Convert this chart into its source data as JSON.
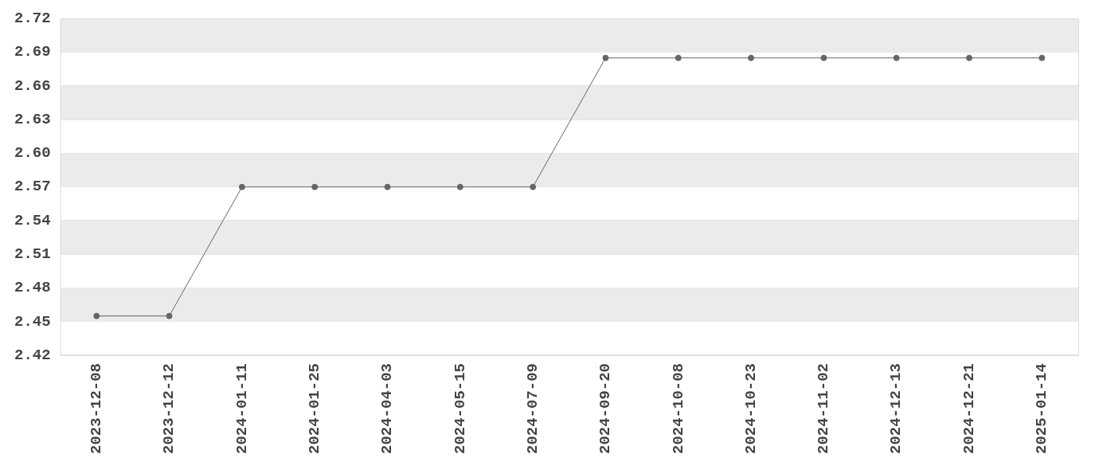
{
  "chart_data": {
    "type": "line",
    "categories": [
      "2023-12-08",
      "2023-12-12",
      "2024-01-11",
      "2024-01-25",
      "2024-04-03",
      "2024-05-15",
      "2024-07-09",
      "2024-09-20",
      "2024-10-08",
      "2024-10-23",
      "2024-11-02",
      "2024-12-13",
      "2024-12-21",
      "2025-01-14"
    ],
    "series": [
      {
        "color": "#666666",
        "values": [
          2.455,
          2.455,
          2.57,
          2.57,
          2.57,
          2.57,
          2.57,
          2.685,
          2.685,
          2.685,
          2.685,
          2.685,
          2.685,
          2.685
        ]
      }
    ],
    "ylim": [
      2.42,
      2.72
    ],
    "yticks": [
      {
        "value": 2.42,
        "label": "2.42"
      },
      {
        "value": 2.45,
        "label": "2.45"
      },
      {
        "value": 2.48,
        "label": "2.48"
      },
      {
        "value": 2.51,
        "label": "2.51"
      },
      {
        "value": 2.54,
        "label": "2.54"
      },
      {
        "value": 2.57,
        "label": "2.57"
      },
      {
        "value": 2.6,
        "label": "2.60"
      },
      {
        "value": 2.63,
        "label": "2.63"
      },
      {
        "value": 2.66,
        "label": "2.66"
      },
      {
        "value": 2.69,
        "label": "2.69"
      },
      {
        "value": 2.72,
        "label": "2.72"
      }
    ],
    "grid": "y",
    "marker": "circle",
    "line_style": "solid",
    "legend": false
  }
}
